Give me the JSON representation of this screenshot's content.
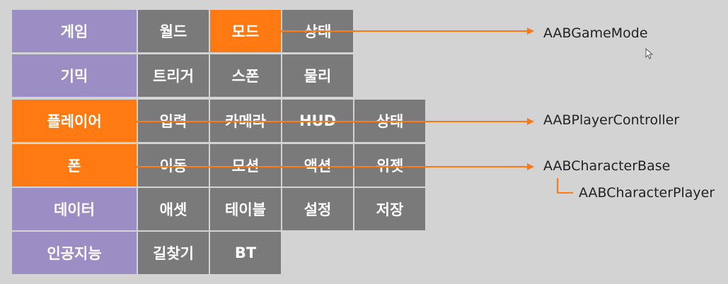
{
  "rows": [
    {
      "category": "게임",
      "items": [
        "월드",
        "모드",
        "상태"
      ]
    },
    {
      "category": "기믹",
      "items": [
        "트리거",
        "스폰",
        "물리"
      ]
    },
    {
      "category": "플레이어",
      "items": [
        "입력",
        "카메라",
        "HUD",
        "상태"
      ]
    },
    {
      "category": "폰",
      "items": [
        "이동",
        "모션",
        "액션",
        "위젯"
      ]
    },
    {
      "category": "데이터",
      "items": [
        "애셋",
        "테이블",
        "설정",
        "저장"
      ]
    },
    {
      "category": "인공지능",
      "items": [
        "길찾기",
        "BT"
      ]
    }
  ],
  "classes": {
    "game_mode": "AABGameMode",
    "player_controller": "AABPlayerController",
    "character_base": "AABCharacterBase",
    "character_player": "AABCharacterPlayer"
  },
  "colors": {
    "category": "#9b8ec4",
    "item": "#7a7a7a",
    "highlight": "#ff7a12",
    "background": "#d3d3d3"
  }
}
